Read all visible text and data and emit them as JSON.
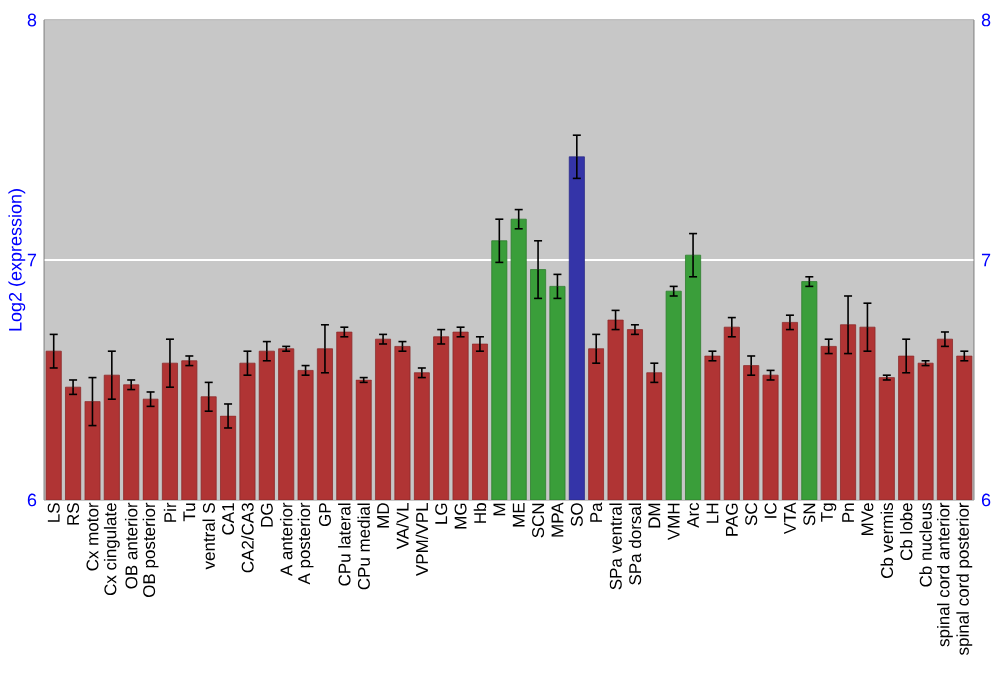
{
  "chart_data": {
    "type": "bar",
    "ylabel": "Log2 (expression)",
    "categories": [
      "LS",
      "RS",
      "Cx motor",
      "Cx cingulate",
      "OB anterior",
      "OB posterior",
      "Pir",
      "Tu",
      "ventral S",
      "CA1",
      "CA2/CA3",
      "DG",
      "A anterior",
      "A posterior",
      "GP",
      "CPu lateral",
      "CPu medial",
      "MD",
      "VA/VL",
      "VPM/VPL",
      "LG",
      "MG",
      "Hb",
      "M",
      "ME",
      "SCN",
      "MPA",
      "SO",
      "Pa",
      "SPa ventral",
      "SPa dorsal",
      "DM",
      "VMH",
      "Arc",
      "LH",
      "PAG",
      "SC",
      "IC",
      "VTA",
      "SN",
      "Tg",
      "Pn",
      "MVe",
      "Cb vermis",
      "Cb lobe",
      "Cb nucleus",
      "spinal cord anterior",
      "spinal cord posterior"
    ],
    "values": [
      6.62,
      6.47,
      6.41,
      6.52,
      6.48,
      6.42,
      6.57,
      6.58,
      6.43,
      6.35,
      6.57,
      6.62,
      6.63,
      6.54,
      6.63,
      6.7,
      6.5,
      6.67,
      6.64,
      6.53,
      6.68,
      6.7,
      6.65,
      7.08,
      7.17,
      6.96,
      6.89,
      7.43,
      6.63,
      6.75,
      6.71,
      6.53,
      6.87,
      7.02,
      6.6,
      6.72,
      6.56,
      6.52,
      6.74,
      6.91,
      6.64,
      6.73,
      6.72,
      6.51,
      6.6,
      6.57,
      6.67,
      6.6
    ],
    "errors": [
      0.07,
      0.03,
      0.1,
      0.1,
      0.02,
      0.03,
      0.1,
      0.02,
      0.06,
      0.05,
      0.05,
      0.04,
      0.01,
      0.02,
      0.1,
      0.02,
      0.01,
      0.02,
      0.02,
      0.02,
      0.03,
      0.02,
      0.03,
      0.09,
      0.04,
      0.12,
      0.05,
      0.09,
      0.06,
      0.04,
      0.02,
      0.04,
      0.02,
      0.09,
      0.02,
      0.04,
      0.04,
      0.02,
      0.03,
      0.02,
      0.03,
      0.12,
      0.1,
      0.01,
      0.07,
      0.01,
      0.03,
      0.02
    ],
    "colors": [
      "#b03434",
      "#b03434",
      "#b03434",
      "#b03434",
      "#b03434",
      "#b03434",
      "#b03434",
      "#b03434",
      "#b03434",
      "#b03434",
      "#b03434",
      "#b03434",
      "#b03434",
      "#b03434",
      "#b03434",
      "#b03434",
      "#b03434",
      "#b03434",
      "#b03434",
      "#b03434",
      "#b03434",
      "#b03434",
      "#b03434",
      "#3a9e3a",
      "#3a9e3a",
      "#3a9e3a",
      "#3a9e3a",
      "#3434a8",
      "#b03434",
      "#b03434",
      "#b03434",
      "#b03434",
      "#3a9e3a",
      "#3a9e3a",
      "#b03434",
      "#b03434",
      "#b03434",
      "#b03434",
      "#b03434",
      "#3a9e3a",
      "#b03434",
      "#b03434",
      "#b03434",
      "#b03434",
      "#b03434",
      "#b03434",
      "#b03434",
      "#b03434"
    ],
    "ylim": [
      6,
      8
    ],
    "yticks": [
      6,
      7,
      8
    ],
    "y2lim": [
      6,
      8
    ],
    "y2ticks": [
      6,
      7,
      8
    ],
    "grid": "y"
  }
}
